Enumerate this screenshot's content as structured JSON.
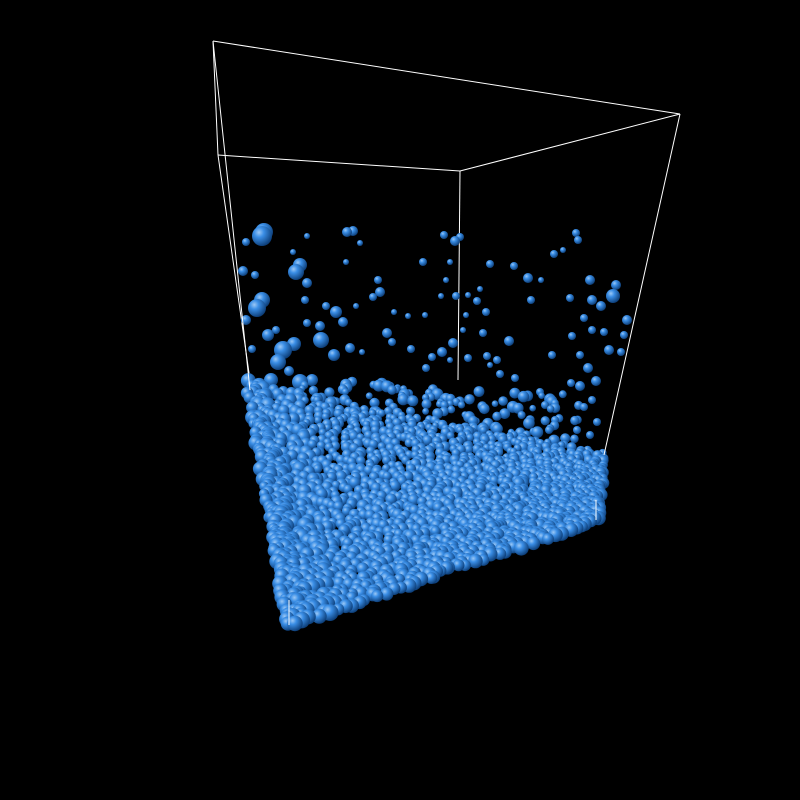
{
  "scene": {
    "background_color": "#000000",
    "particle_color": "#3a8ee6",
    "particle_highlight_color": "#9cc8f5",
    "particle_shadow_color": "#0d3e78",
    "box_edge_color": "#ffffff",
    "particle_shape": "sphere",
    "bounding_box_shape": "rectangular-prism-wireframe"
  }
}
